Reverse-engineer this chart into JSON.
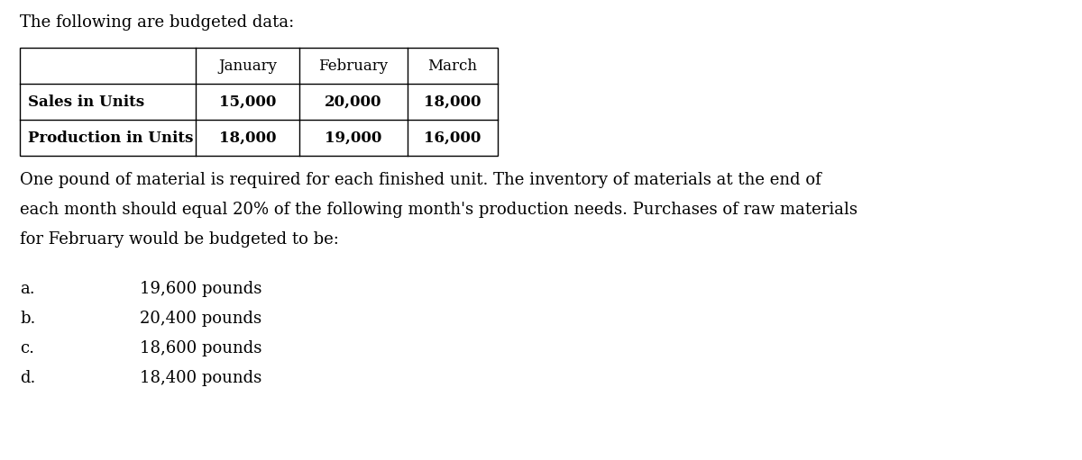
{
  "title": "The following are budgeted data:",
  "table": {
    "col_headers": [
      "",
      "January",
      "February",
      "March"
    ],
    "rows": [
      [
        "Sales in Units",
        "15,000",
        "20,000",
        "18,000"
      ],
      [
        "Production in Units",
        "18,000",
        "19,000",
        "16,000"
      ]
    ]
  },
  "para_lines": [
    "One pound of material is required for each finished unit. The inventory of materials at the end of",
    "each month should equal 20% of the following month's production needs. Purchases of raw materials",
    "for February would be budgeted to be:"
  ],
  "options": [
    {
      "label": "a.",
      "text": "19,600 pounds"
    },
    {
      "label": "b.",
      "text": "20,400 pounds"
    },
    {
      "label": "c.",
      "text": "18,600 pounds"
    },
    {
      "label": "d.",
      "text": "18,400 pounds"
    }
  ],
  "bg_color": "#ffffff",
  "text_color": "#000000",
  "font_size_title": 13,
  "font_size_table": 12,
  "font_size_para": 13,
  "font_size_options": 13,
  "font_family": "serif"
}
